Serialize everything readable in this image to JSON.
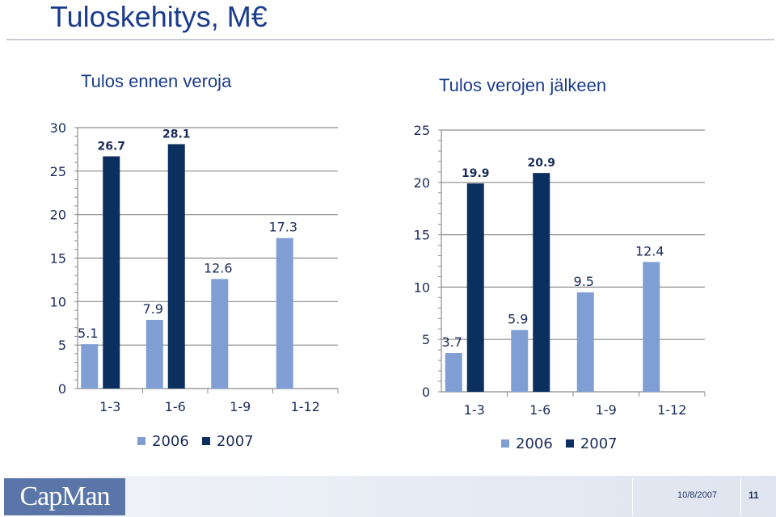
{
  "page": {
    "title": "Tuloskehitys, M€",
    "footer": {
      "logo": "CapMan",
      "date": "10/8/2007",
      "page_number": "11"
    }
  },
  "colors": {
    "series_2006": "#7f9fd4",
    "series_2007": "#0b2f5e",
    "title": "#1b3c8c",
    "logo_bg": "#5a76a8"
  },
  "chart_data": [
    {
      "type": "bar",
      "title": "Tulos ennen veroja",
      "categories": [
        "1-3",
        "1-6",
        "1-9",
        "1-12"
      ],
      "series": [
        {
          "name": "2006",
          "values": [
            5.1,
            7.9,
            12.6,
            17.3
          ]
        },
        {
          "name": "2007",
          "values": [
            26.7,
            28.1,
            null,
            null
          ]
        }
      ],
      "ylim": [
        0,
        30
      ],
      "yticks": [
        0,
        5,
        10,
        15,
        20,
        25,
        30
      ],
      "xlabel": "",
      "ylabel": "",
      "grid": true,
      "legend": "bottom"
    },
    {
      "type": "bar",
      "title": "Tulos verojen jälkeen",
      "categories": [
        "1-3",
        "1-6",
        "1-9",
        "1-12"
      ],
      "series": [
        {
          "name": "2006",
          "values": [
            3.7,
            5.9,
            9.5,
            12.4
          ]
        },
        {
          "name": "2007",
          "values": [
            19.9,
            20.9,
            null,
            null
          ]
        }
      ],
      "ylim": [
        0,
        25
      ],
      "yticks": [
        0,
        5,
        10,
        15,
        20,
        25
      ],
      "xlabel": "",
      "ylabel": "",
      "grid": true,
      "legend": "bottom"
    }
  ]
}
